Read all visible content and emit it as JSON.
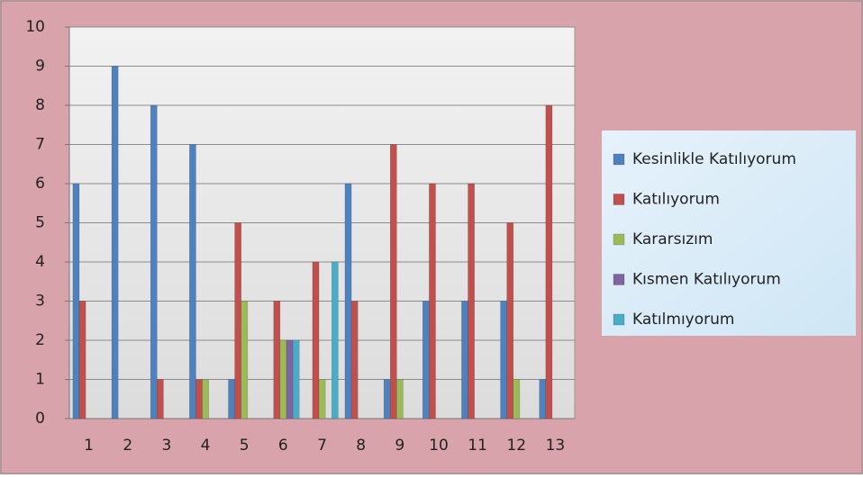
{
  "chart_data": {
    "type": "grouped-bar",
    "categories": [
      "1",
      "2",
      "3",
      "4",
      "5",
      "6",
      "7",
      "8",
      "9",
      "10",
      "11",
      "12",
      "13"
    ],
    "series": [
      {
        "name": "Kesinlikle  Katılıyorum",
        "color": "#4f81bd",
        "values": [
          6,
          9,
          8,
          7,
          1,
          0,
          0,
          6,
          1,
          3,
          3,
          3,
          1
        ]
      },
      {
        "name": "Katılıyorum",
        "color": "#c0504d",
        "values": [
          3,
          0,
          1,
          1,
          5,
          3,
          4,
          3,
          7,
          6,
          6,
          5,
          8
        ]
      },
      {
        "name": "Kararsızım",
        "color": "#9bbb59",
        "values": [
          0,
          0,
          0,
          1,
          3,
          2,
          1,
          0,
          1,
          0,
          0,
          1,
          0
        ]
      },
      {
        "name": "Kısmen Katılıyorum",
        "color": "#8064a2",
        "values": [
          0,
          0,
          0,
          0,
          0,
          2,
          0,
          0,
          0,
          0,
          0,
          0,
          0
        ]
      },
      {
        "name": "Katılmıyorum",
        "color": "#4bacc6",
        "values": [
          0,
          0,
          0,
          0,
          0,
          2,
          4,
          0,
          0,
          0,
          0,
          0,
          0
        ]
      }
    ],
    "ylim": [
      0,
      10
    ],
    "yticks": [
      0,
      1,
      2,
      3,
      4,
      5,
      6,
      7,
      8,
      9,
      10
    ],
    "grid": true,
    "legend": "right"
  }
}
